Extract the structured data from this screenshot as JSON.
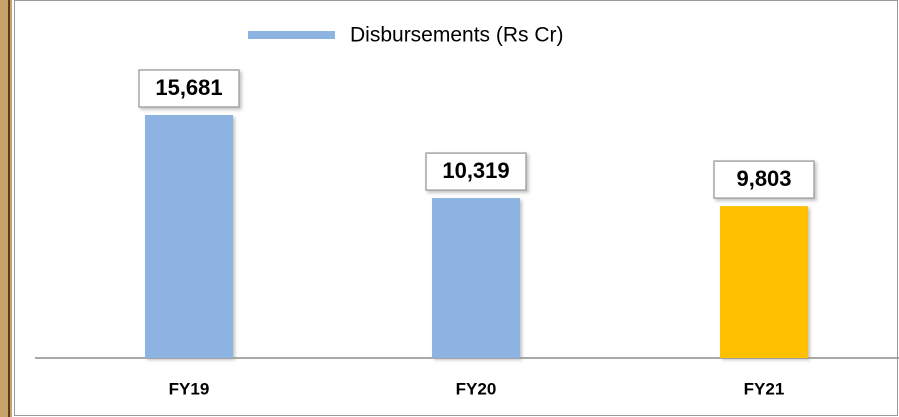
{
  "chart_data": {
    "type": "bar",
    "categories": [
      "FY19",
      "FY20",
      "FY21"
    ],
    "series": [
      {
        "name": "Disbursements (Rs Cr)",
        "color": "#8db3e2",
        "values": [
          15681,
          10319,
          9803
        ],
        "value_labels": [
          "15,681",
          "10,319",
          "9,803"
        ],
        "colors": [
          "#8db3e2",
          "#8db3e2",
          "#ffc000"
        ]
      }
    ]
  }
}
